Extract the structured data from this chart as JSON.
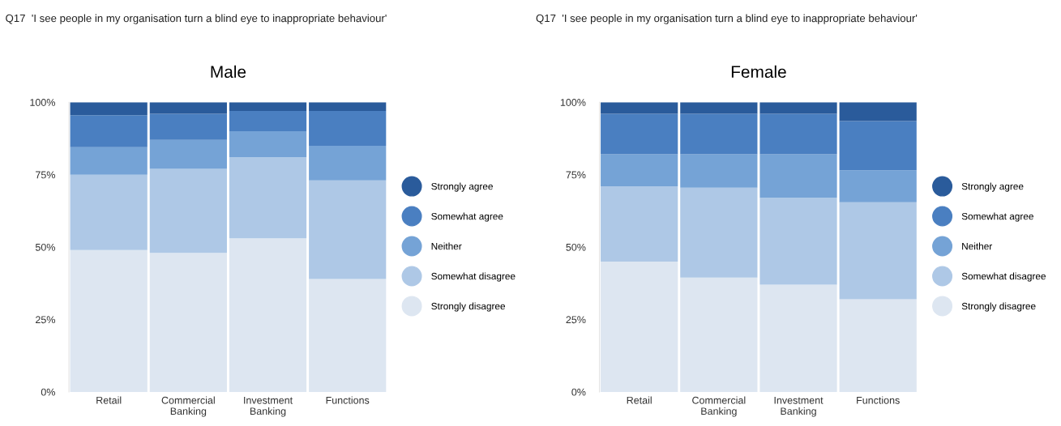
{
  "chart_data": [
    {
      "type": "bar",
      "stacked": true,
      "title": "Q17  'I see people in my organisation turn a blind eye to inappropriate behaviour'",
      "subtitle": "Male",
      "categories": [
        "Retail",
        "Commercial\nBanking",
        "Investment\nBanking",
        "Functions"
      ],
      "series": [
        {
          "name": "Strongly disagree",
          "color": "#dde6f1",
          "values": [
            49,
            48,
            53,
            39
          ]
        },
        {
          "name": "Somewhat disagree",
          "color": "#aec8e6",
          "values": [
            26,
            29,
            28,
            34
          ]
        },
        {
          "name": "Neither",
          "color": "#75a3d6",
          "values": [
            9.5,
            10,
            9,
            12
          ]
        },
        {
          "name": "Somewhat agree",
          "color": "#4a7fc1",
          "values": [
            11,
            9,
            7,
            12
          ]
        },
        {
          "name": "Strongly agree",
          "color": "#2a5b9b",
          "values": [
            4.5,
            4,
            3,
            3
          ]
        }
      ],
      "ylim": [
        0,
        100
      ],
      "yticks": [
        {
          "value": 0,
          "label": "0%"
        },
        {
          "value": 25,
          "label": "25%"
        },
        {
          "value": 50,
          "label": "50%"
        },
        {
          "value": 75,
          "label": "75%"
        },
        {
          "value": 100,
          "label": "100%"
        }
      ],
      "grid": false,
      "legend": "right",
      "marker": "circle"
    },
    {
      "type": "bar",
      "stacked": true,
      "title": "Q17  'I see people in my organisation turn a blind eye to inappropriate behaviour'",
      "subtitle": "Female",
      "categories": [
        "Retail",
        "Commercial\nBanking",
        "Investment\nBanking",
        "Functions"
      ],
      "series": [
        {
          "name": "Strongly disagree",
          "color": "#dde6f1",
          "values": [
            45,
            39.5,
            37,
            32
          ]
        },
        {
          "name": "Somewhat disagree",
          "color": "#aec8e6",
          "values": [
            26,
            31,
            30,
            33.5
          ]
        },
        {
          "name": "Neither",
          "color": "#75a3d6",
          "values": [
            11,
            11.5,
            15,
            11
          ]
        },
        {
          "name": "Somewhat agree",
          "color": "#4a7fc1",
          "values": [
            14,
            14,
            14,
            17
          ]
        },
        {
          "name": "Strongly agree",
          "color": "#2a5b9b",
          "values": [
            4,
            4,
            4,
            6.5
          ]
        }
      ],
      "ylim": [
        0,
        100
      ],
      "yticks": [
        {
          "value": 0,
          "label": "0%"
        },
        {
          "value": 25,
          "label": "25%"
        },
        {
          "value": 50,
          "label": "50%"
        },
        {
          "value": 75,
          "label": "75%"
        },
        {
          "value": 100,
          "label": "100%"
        }
      ],
      "grid": false,
      "legend": "right",
      "marker": "circle"
    }
  ]
}
